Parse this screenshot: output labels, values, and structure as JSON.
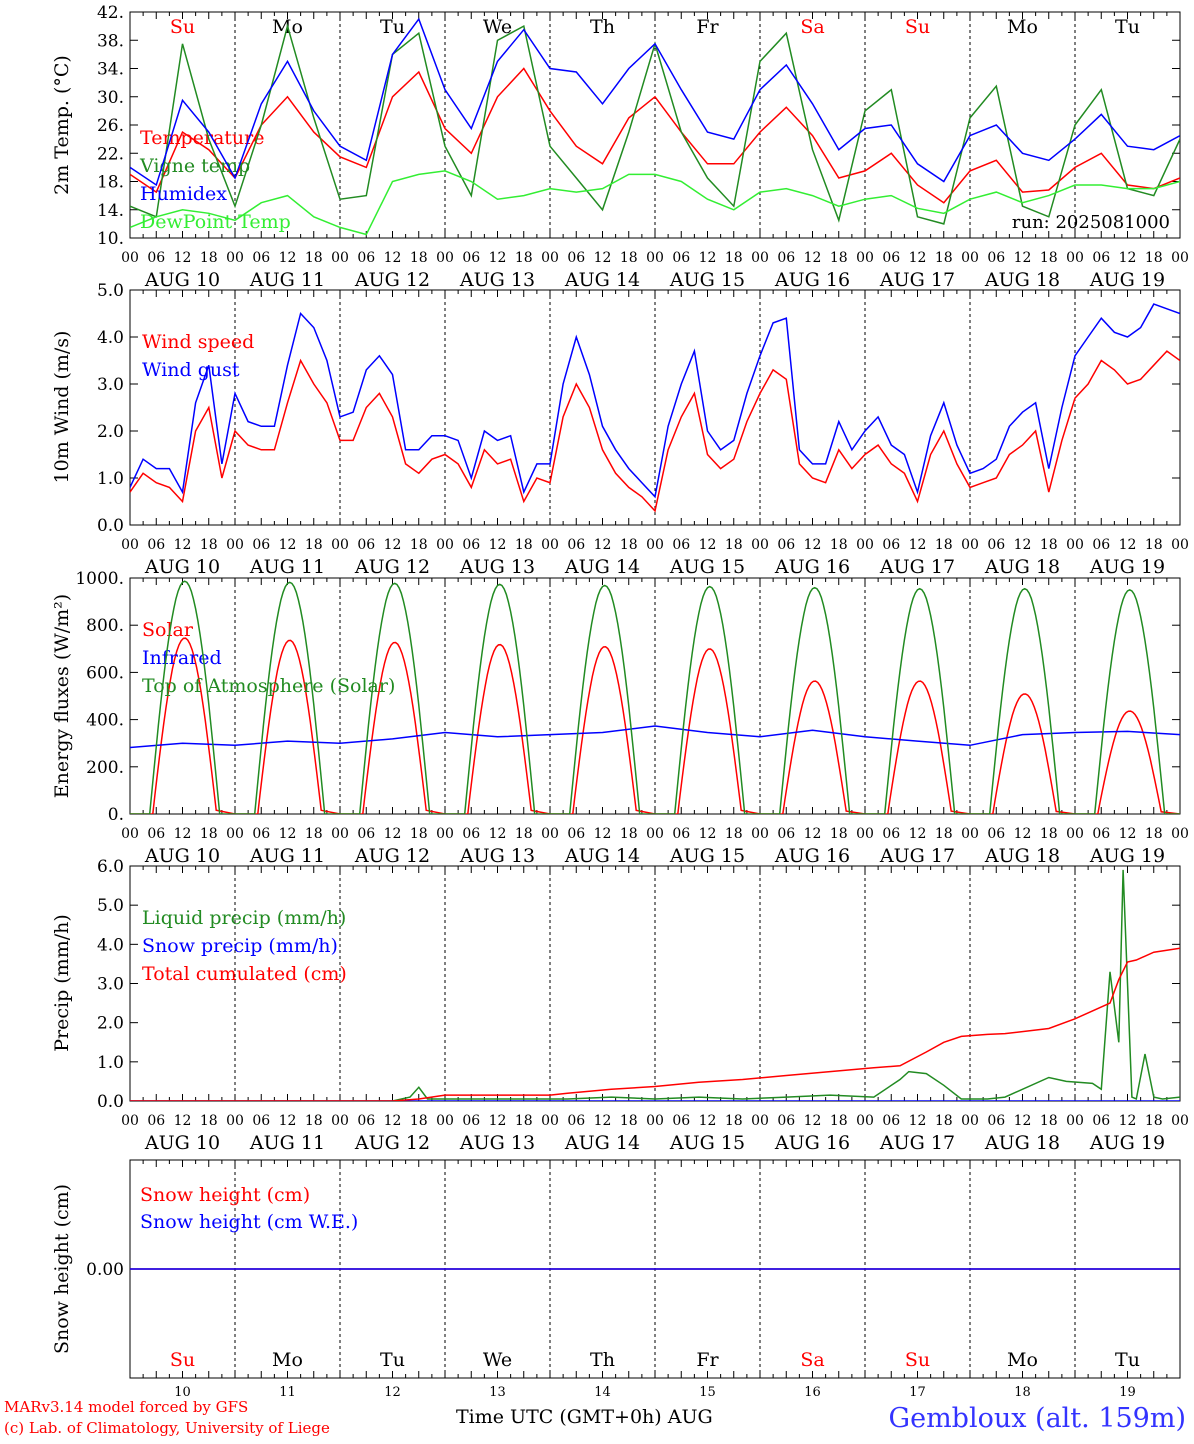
{
  "station": "Gembloux (alt. 159m)",
  "credits": [
    "MARv3.14 model forced by GFS",
    "(c) Lab. of Climatology, University of Liege"
  ],
  "x_axis_title": "Time UTC (GMT+0h)",
  "x_axis_month": "AUG",
  "day_names": [
    "Su",
    "Mo",
    "Tu",
    "We",
    "Th",
    "Fr",
    "Sa",
    "Su",
    "Mo",
    "Tu"
  ],
  "weekend_flags": [
    true,
    false,
    false,
    false,
    false,
    false,
    true,
    true,
    false,
    false
  ],
  "day_labels": [
    "AUG 10",
    "AUG 11",
    "AUG 12",
    "AUG 13",
    "AUG 14",
    "AUG 15",
    "AUG 16",
    "AUG 17",
    "AUG 18",
    "AUG 19"
  ],
  "day_numbers": [
    "10",
    "11",
    "12",
    "13",
    "14",
    "15",
    "16",
    "17",
    "18",
    "19"
  ],
  "hour_ticks": [
    "00",
    "06",
    "12",
    "18"
  ],
  "colors": {
    "red": "#ff0000",
    "green": "#228b22",
    "blue": "#0000ff",
    "lightgreen": "#33ee33"
  },
  "chart_data": [
    {
      "type": "line",
      "ylabel": "2m Temp. (°C)",
      "ylim": [
        10,
        42
      ],
      "ytick_labels": [
        "10.",
        "14.",
        "18.",
        "22.",
        "26.",
        "30.",
        "34.",
        "38.",
        "42."
      ],
      "show_day_names": true,
      "annotation": "run: 2025081000",
      "x_unit": "hours since AUG 10 00 UTC",
      "series": [
        {
          "name": "Temperature",
          "color": "red",
          "x": [
            0,
            6,
            12,
            18,
            24,
            30,
            36,
            42,
            48,
            54,
            60,
            66,
            72,
            78,
            84,
            90,
            96,
            102,
            108,
            114,
            120,
            126,
            132,
            138,
            144,
            150,
            156,
            162,
            168,
            174,
            180,
            186,
            192,
            198,
            204,
            210,
            216,
            222,
            228,
            234,
            240
          ],
          "values": [
            19,
            16.5,
            25,
            22.5,
            18.5,
            26,
            30,
            25,
            21.5,
            20,
            30,
            33.5,
            25.5,
            22,
            30,
            34,
            28,
            23,
            20.5,
            27,
            30,
            25,
            20.5,
            20.5,
            25,
            28.5,
            24.5,
            18.5,
            19.5,
            22,
            17.5,
            15,
            19.5,
            21,
            16.5,
            16.8,
            20,
            22,
            17.5,
            17,
            18.5
          ]
        },
        {
          "name": "Vigne temp",
          "color": "green",
          "x": [
            0,
            6,
            12,
            18,
            24,
            30,
            36,
            42,
            48,
            54,
            60,
            66,
            72,
            78,
            84,
            90,
            96,
            102,
            108,
            114,
            120,
            126,
            132,
            138,
            144,
            150,
            156,
            162,
            168,
            174,
            180,
            186,
            192,
            198,
            204,
            210,
            216,
            222,
            228,
            234,
            240
          ],
          "values": [
            14.5,
            13,
            37.5,
            24,
            14.5,
            26,
            40,
            27,
            15.5,
            16,
            36,
            39,
            23,
            16,
            38,
            40,
            23,
            18.5,
            14,
            25,
            37.5,
            25,
            18.5,
            14.5,
            35,
            39,
            22.5,
            12.5,
            28,
            31,
            13,
            12,
            27,
            31.5,
            14.5,
            13,
            26,
            31,
            17,
            16,
            24
          ]
        },
        {
          "name": "Humidex",
          "color": "blue",
          "x": [
            0,
            6,
            12,
            18,
            24,
            30,
            36,
            42,
            48,
            54,
            60,
            66,
            72,
            78,
            84,
            90,
            96,
            102,
            108,
            114,
            120,
            126,
            132,
            138,
            144,
            150,
            156,
            162,
            168,
            174,
            180,
            186,
            192,
            198,
            204,
            210,
            216,
            222,
            228,
            234,
            240
          ],
          "values": [
            20,
            17.5,
            29.5,
            25,
            18.5,
            29,
            35,
            28,
            23,
            21,
            36,
            41,
            31,
            25.5,
            35,
            39.5,
            34,
            33.5,
            29,
            34,
            37.5,
            31,
            25,
            24,
            31,
            34.5,
            29,
            22.5,
            25.5,
            26,
            20.5,
            18,
            24.5,
            26,
            22,
            21,
            24,
            27.5,
            23,
            22.5,
            24.5
          ]
        },
        {
          "name": "DewPoint Temp",
          "color": "lightgreen",
          "x": [
            0,
            6,
            12,
            18,
            24,
            30,
            36,
            42,
            48,
            54,
            60,
            66,
            72,
            78,
            84,
            90,
            96,
            102,
            108,
            114,
            120,
            126,
            132,
            138,
            144,
            150,
            156,
            162,
            168,
            174,
            180,
            186,
            192,
            198,
            204,
            210,
            216,
            222,
            228,
            234,
            240
          ],
          "values": [
            11.5,
            13,
            14,
            13.5,
            12.5,
            15,
            16,
            13,
            11.5,
            10.5,
            18,
            19,
            19.5,
            18,
            15.5,
            16,
            17,
            16.5,
            17,
            19,
            19,
            18,
            15.5,
            14,
            16.5,
            17,
            16,
            14.5,
            15.5,
            16,
            14.2,
            13.5,
            15.5,
            16.5,
            15,
            16,
            17.5,
            17.5,
            17,
            17,
            18
          ]
        }
      ]
    },
    {
      "type": "line",
      "ylabel": "10m Wind (m/s)",
      "ylim": [
        0,
        5
      ],
      "ytick_labels": [
        "0.0",
        "1.0",
        "2.0",
        "3.0",
        "4.0",
        "5.0"
      ],
      "x_unit": "hours since AUG 10 00 UTC",
      "series": [
        {
          "name": "Wind speed",
          "color": "red",
          "x": [
            0,
            3,
            6,
            9,
            12,
            15,
            18,
            21,
            24,
            27,
            30,
            33,
            36,
            39,
            42,
            45,
            48,
            51,
            54,
            57,
            60,
            63,
            66,
            69,
            72,
            75,
            78,
            81,
            84,
            87,
            90,
            93,
            96,
            99,
            102,
            105,
            108,
            111,
            114,
            117,
            120,
            123,
            126,
            129,
            132,
            135,
            138,
            141,
            144,
            147,
            150,
            153,
            156,
            159,
            162,
            165,
            168,
            171,
            174,
            177,
            180,
            183,
            186,
            189,
            192,
            195,
            198,
            201,
            204,
            207,
            210,
            213,
            216,
            219,
            222,
            225,
            228,
            231,
            234,
            237,
            240
          ],
          "values": [
            0.7,
            1.1,
            0.9,
            0.8,
            0.5,
            2.0,
            2.5,
            1.0,
            2.0,
            1.7,
            1.6,
            1.6,
            2.6,
            3.5,
            3.0,
            2.6,
            1.8,
            1.8,
            2.5,
            2.8,
            2.3,
            1.3,
            1.1,
            1.4,
            1.5,
            1.3,
            0.8,
            1.6,
            1.3,
            1.4,
            0.5,
            1.0,
            0.9,
            2.3,
            3.0,
            2.5,
            1.6,
            1.1,
            0.8,
            0.6,
            0.3,
            1.6,
            2.3,
            2.8,
            1.5,
            1.2,
            1.4,
            2.2,
            2.8,
            3.3,
            3.1,
            1.3,
            1.0,
            0.9,
            1.6,
            1.2,
            1.5,
            1.7,
            1.3,
            1.1,
            0.5,
            1.5,
            2.0,
            1.3,
            0.8,
            0.9,
            1.0,
            1.5,
            1.7,
            2.0,
            0.7,
            1.8,
            2.7,
            3.0,
            3.5,
            3.3,
            3.0,
            3.1,
            3.4,
            3.7,
            3.5
          ]
        },
        {
          "name": "Wind gust",
          "color": "blue",
          "x": [
            0,
            3,
            6,
            9,
            12,
            15,
            18,
            21,
            24,
            27,
            30,
            33,
            36,
            39,
            42,
            45,
            48,
            51,
            54,
            57,
            60,
            63,
            66,
            69,
            72,
            75,
            78,
            81,
            84,
            87,
            90,
            93,
            96,
            99,
            102,
            105,
            108,
            111,
            114,
            117,
            120,
            123,
            126,
            129,
            132,
            135,
            138,
            141,
            144,
            147,
            150,
            153,
            156,
            159,
            162,
            165,
            168,
            171,
            174,
            177,
            180,
            183,
            186,
            189,
            192,
            195,
            198,
            201,
            204,
            207,
            210,
            213,
            216,
            219,
            222,
            225,
            228,
            231,
            234,
            237,
            240
          ],
          "values": [
            0.8,
            1.4,
            1.2,
            1.2,
            0.7,
            2.6,
            3.4,
            1.3,
            2.8,
            2.2,
            2.1,
            2.1,
            3.4,
            4.5,
            4.2,
            3.5,
            2.3,
            2.4,
            3.3,
            3.6,
            3.2,
            1.6,
            1.6,
            1.9,
            1.9,
            1.8,
            1.0,
            2.0,
            1.8,
            1.9,
            0.7,
            1.3,
            1.3,
            3.0,
            4.0,
            3.2,
            2.1,
            1.6,
            1.2,
            0.9,
            0.6,
            2.1,
            3.0,
            3.7,
            2.0,
            1.6,
            1.8,
            2.8,
            3.6,
            4.3,
            4.4,
            1.6,
            1.3,
            1.3,
            2.2,
            1.6,
            2.0,
            2.3,
            1.7,
            1.5,
            0.7,
            1.9,
            2.6,
            1.7,
            1.1,
            1.2,
            1.4,
            2.1,
            2.4,
            2.6,
            1.2,
            2.5,
            3.6,
            4.0,
            4.4,
            4.1,
            4.0,
            4.2,
            4.7,
            4.6,
            4.5
          ]
        }
      ]
    },
    {
      "type": "line",
      "ylabel": "Energy fluxes (W/m²)",
      "ylim": [
        0,
        1100
      ],
      "ytick_labels": [
        "0.",
        "200.",
        "400.",
        "600.",
        "800.",
        "1000."
      ],
      "x_unit": "hours since AUG 10 00 UTC",
      "series": [
        {
          "name": "Solar",
          "color": "red",
          "daily_peak": [
            820,
            810,
            800,
            790,
            780,
            770,
            620,
            620,
            560,
            480
          ],
          "peak_hour": 12.5
        },
        {
          "name": "Infrared",
          "color": "blue",
          "x": [
            0,
            12,
            24,
            36,
            48,
            60,
            72,
            84,
            96,
            108,
            120,
            132,
            144,
            156,
            168,
            180,
            192,
            204,
            216,
            228,
            240
          ],
          "values": [
            310,
            330,
            320,
            340,
            330,
            350,
            380,
            360,
            370,
            380,
            410,
            380,
            360,
            390,
            360,
            340,
            320,
            370,
            380,
            385,
            370
          ]
        },
        {
          "name": "Top of Atmosphere (Solar)",
          "color": "green",
          "daily_peak": [
            1085,
            1080,
            1075,
            1070,
            1065,
            1060,
            1055,
            1050,
            1050,
            1045
          ],
          "peak_hour": 12.5
        }
      ]
    },
    {
      "type": "line",
      "ylabel": "Precip (mm/h)",
      "ylim": [
        0,
        6
      ],
      "ytick_labels": [
        "0.0",
        "1.0",
        "2.0",
        "3.0",
        "4.0",
        "5.0",
        "6.0"
      ],
      "x_unit": "hours since AUG 10 00 UTC",
      "series": [
        {
          "name": "Liquid precip (mm/h)",
          "color": "green",
          "x": [
            0,
            60,
            64,
            66,
            68,
            72,
            100,
            110,
            120,
            130,
            140,
            150,
            160,
            170,
            176,
            178,
            182,
            186,
            190,
            196,
            200,
            210,
            214,
            220,
            222,
            224,
            226,
            227,
            228,
            229,
            230,
            232,
            234,
            236,
            240
          ],
          "values": [
            0,
            0,
            0.1,
            0.35,
            0.05,
            0.05,
            0.05,
            0.1,
            0.05,
            0.1,
            0.05,
            0.1,
            0.15,
            0.1,
            0.55,
            0.75,
            0.7,
            0.4,
            0.05,
            0.05,
            0.1,
            0.6,
            0.5,
            0.45,
            0.3,
            3.3,
            1.5,
            5.9,
            3.0,
            0.1,
            0.05,
            1.2,
            0.1,
            0.05,
            0.1
          ]
        },
        {
          "name": "Snow precip (mm/h)",
          "color": "blue",
          "x": [
            0,
            240
          ],
          "values": [
            0,
            0
          ]
        },
        {
          "name": "Total cumulated (cm)",
          "color": "red",
          "x": [
            0,
            60,
            66,
            72,
            96,
            100,
            110,
            120,
            130,
            140,
            150,
            160,
            170,
            176,
            182,
            186,
            190,
            196,
            200,
            210,
            216,
            220,
            224,
            226,
            228,
            230,
            234,
            240
          ],
          "values": [
            0,
            0,
            0.05,
            0.15,
            0.15,
            0.2,
            0.3,
            0.37,
            0.48,
            0.55,
            0.65,
            0.75,
            0.85,
            0.9,
            1.25,
            1.5,
            1.65,
            1.7,
            1.72,
            1.85,
            2.1,
            2.3,
            2.5,
            3.1,
            3.55,
            3.6,
            3.8,
            3.9
          ]
        }
      ]
    },
    {
      "type": "line",
      "ylabel": "Snow height (cm)",
      "ylim": [
        -1,
        1
      ],
      "ytick_labels": [
        "0.00"
      ],
      "show_day_names_bottom": true,
      "x_unit": "hours since AUG 10 00 UTC",
      "series": [
        {
          "name": "Snow height (cm)",
          "color": "red",
          "x": [
            0,
            240
          ],
          "values": [
            0,
            0
          ]
        },
        {
          "name": "Snow height (cm W.E.)",
          "color": "blue",
          "x": [
            0,
            240
          ],
          "values": [
            0,
            0
          ]
        }
      ]
    }
  ]
}
